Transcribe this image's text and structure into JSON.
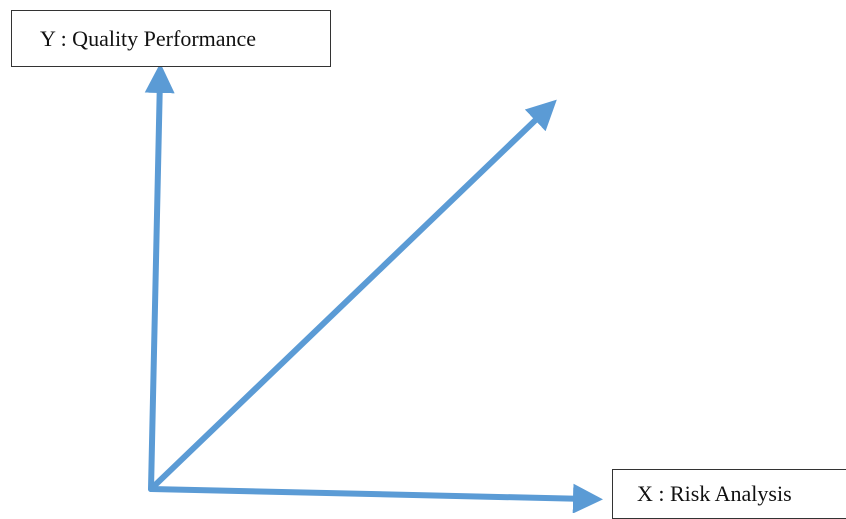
{
  "diagram": {
    "y_axis_label": "Y : Quality Performance",
    "x_axis_label": "X : Risk Analysis",
    "arrow_color": "#5b9bd5",
    "box_border_color": "#333333"
  }
}
